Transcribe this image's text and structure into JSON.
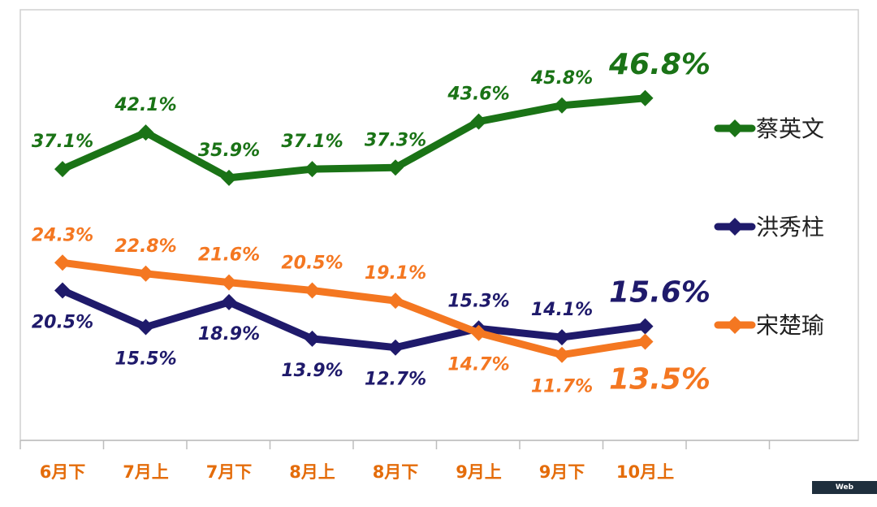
{
  "chart_data": {
    "type": "line",
    "categories": [
      "6月下",
      "7月上",
      "7月下",
      "8月上",
      "8月下",
      "9月上",
      "9月下",
      "10月上"
    ],
    "ylim": [
      0,
      55
    ],
    "grid": false,
    "legend_position": "right",
    "series": [
      {
        "name": "蔡英文",
        "color": "#1a7316",
        "values": [
          37.1,
          42.1,
          35.9,
          37.1,
          37.3,
          43.6,
          45.8,
          46.8
        ],
        "labels": [
          "37.1%",
          "42.1%",
          "35.9%",
          "37.1%",
          "37.3%",
          "43.6%",
          "45.8%",
          "46.8%"
        ]
      },
      {
        "name": "洪秀柱",
        "color": "#1f1a6b",
        "values": [
          20.5,
          15.5,
          18.9,
          13.9,
          12.7,
          15.3,
          14.1,
          15.6
        ],
        "labels": [
          "20.5%",
          "15.5%",
          "18.9%",
          "13.9%",
          "12.7%",
          "15.3%",
          "14.1%",
          "15.6%"
        ]
      },
      {
        "name": "宋楚瑜",
        "color": "#f47721",
        "values": [
          24.3,
          22.8,
          21.6,
          20.5,
          19.1,
          14.7,
          11.7,
          13.5
        ],
        "labels": [
          "24.3%",
          "22.8%",
          "21.6%",
          "20.5%",
          "19.1%",
          "14.7%",
          "11.7%",
          "13.5%"
        ]
      }
    ]
  },
  "watermark": "Web Screenshot"
}
